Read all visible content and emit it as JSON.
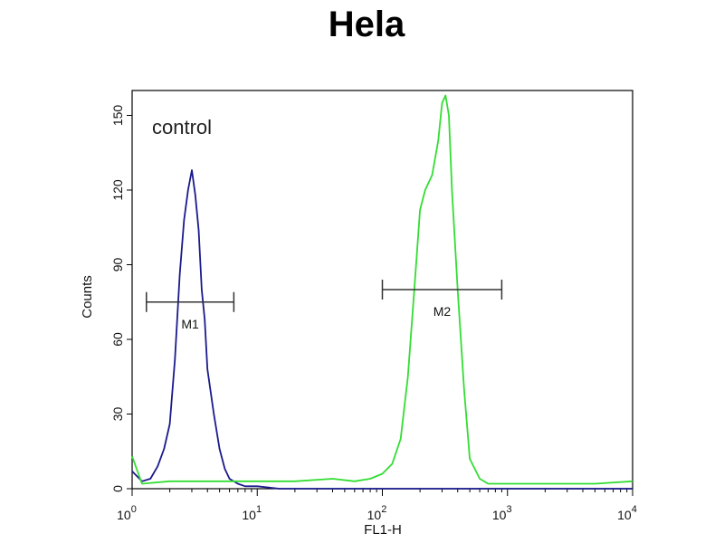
{
  "chart_data": {
    "type": "line",
    "title": "Hela",
    "xlabel": "FL1-H",
    "ylabel": "Counts",
    "x_scale": "log",
    "xlim": [
      1,
      10000
    ],
    "ylim": [
      0,
      160
    ],
    "y_ticks": [
      0,
      30,
      60,
      90,
      120,
      150
    ],
    "y_tick_labels": [
      "0",
      "30",
      "60",
      "90",
      "120",
      "150"
    ],
    "x_ticks": [
      1,
      10,
      100,
      1000,
      10000
    ],
    "x_tick_bases": [
      "10",
      "10",
      "10",
      "10",
      "10"
    ],
    "x_tick_exps": [
      "0",
      "1",
      "2",
      "3",
      "4"
    ],
    "annotation": "control",
    "markers": [
      {
        "label": "M1",
        "x_start": 1.3,
        "x_end": 6.5,
        "y": 75
      },
      {
        "label": "M2",
        "x_start": 100,
        "x_end": 900,
        "y": 80
      }
    ],
    "series": [
      {
        "color": "#1a1a8c",
        "x": [
          1.0,
          1.2,
          1.4,
          1.6,
          1.8,
          2.0,
          2.2,
          2.4,
          2.6,
          2.8,
          3.0,
          3.2,
          3.4,
          3.6,
          3.8,
          4.0,
          4.5,
          5.0,
          5.5,
          6.0,
          7.0,
          8.0,
          10,
          15,
          20,
          40,
          100,
          1000,
          10000
        ],
        "y": [
          7,
          3,
          4,
          9,
          16,
          26,
          52,
          86,
          108,
          120,
          128,
          118,
          104,
          80,
          68,
          48,
          30,
          16,
          8,
          4,
          2,
          1,
          1,
          0,
          0,
          0,
          0,
          0,
          0
        ]
      },
      {
        "color": "#33dd33",
        "x": [
          1.0,
          1.2,
          2,
          5,
          10,
          20,
          40,
          60,
          80,
          100,
          120,
          140,
          160,
          180,
          200,
          220,
          250,
          280,
          300,
          320,
          340,
          360,
          400,
          450,
          500,
          600,
          700,
          1000,
          2000,
          5000,
          10000
        ],
        "y": [
          13,
          2,
          3,
          3,
          3,
          3,
          4,
          3,
          4,
          6,
          10,
          20,
          45,
          80,
          112,
          120,
          126,
          140,
          155,
          158,
          150,
          120,
          80,
          40,
          12,
          4,
          2,
          2,
          2,
          2,
          3
        ]
      }
    ]
  }
}
